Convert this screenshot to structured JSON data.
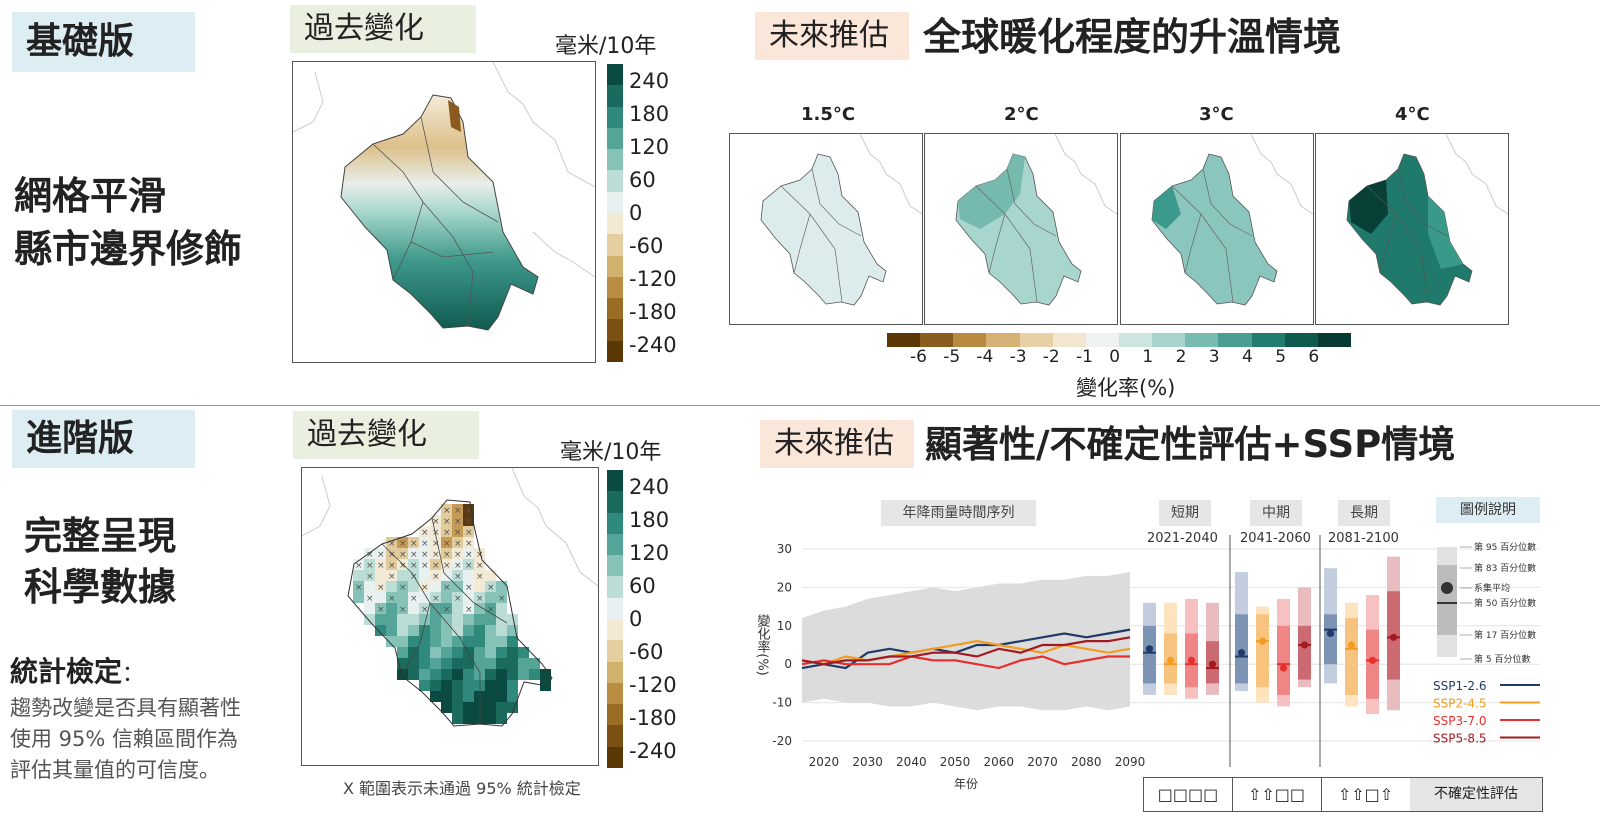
{
  "top": {
    "label": "基礎版",
    "desc_line1": "網格平滑",
    "desc_line2": "縣市邊界修飾",
    "past_label": "過去變化",
    "unit": "毫米/10年",
    "future_tag": "未來推估",
    "future_title": "全球暖化程度的升溫情境",
    "gwl_titles": [
      "1.5°C",
      "2°C",
      "3°C",
      "4°C"
    ],
    "hbar_ticks": [
      "-6",
      "-5",
      "-4",
      "-3",
      "-2",
      "-1",
      "0",
      "1",
      "2",
      "3",
      "4",
      "5",
      "6"
    ],
    "hbar_label": "變化率(%)"
  },
  "bottom": {
    "label": "進階版",
    "desc_line1": "完整呈現",
    "desc_line2": "科學數據",
    "stat_title": "統計檢定",
    "stat_colon": "：",
    "stat_line1": "趨勢改變是否具有顯著性",
    "stat_line2": "使用 95% 信賴區間作為",
    "stat_line3": "評估其量值的可信度。",
    "past_label": "過去變化",
    "unit": "毫米/10年",
    "map_note": "X 範圍表示未通過 95%  統計檢定",
    "future_tag": "未來推估",
    "future_title": "顯著性/不確定性評估+SSP情境",
    "ts_header": "年降雨量時間序列",
    "period_headers": [
      "短期",
      "中期",
      "長期"
    ],
    "period_ranges": [
      "2021-2040",
      "2041-2060",
      "2081-2100"
    ],
    "legend_header": "圖例說明",
    "legend_box_labels": [
      "第 95 百分位數",
      "第 83 百分位數",
      "系集平均",
      "第 50 百分位數",
      "第 17 百分位數",
      "第 5 百分位數"
    ],
    "bottom_cells": [
      "□□□□",
      "⇧⇧□□",
      "⇧⇧□⇧",
      "不確定性評估"
    ]
  },
  "colorbar_ticks": [
    "240",
    "180",
    "120",
    "60",
    "0",
    "-60",
    "-120",
    "-180",
    "-240"
  ],
  "colors": {
    "brown_dark": "#5b3a10",
    "green_dark": "#0c4f45",
    "ssp1": "#1f3a68",
    "ssp2": "#f39c1f",
    "ssp3": "#e53030",
    "ssp5": "#a31a22"
  },
  "chart_data": [
    {
      "type": "line",
      "title": "年降雨量時間序列",
      "xlabel": "年份",
      "ylabel": "變化率(%)",
      "xlim": [
        2015,
        2090
      ],
      "ylim": [
        -20,
        30
      ],
      "x_ticks": [
        2020,
        2030,
        2040,
        2050,
        2060,
        2070,
        2080,
        2090
      ],
      "y_ticks": [
        30,
        20,
        10,
        0,
        -10,
        -20
      ],
      "x": [
        2015,
        2020,
        2025,
        2030,
        2035,
        2040,
        2045,
        2050,
        2055,
        2060,
        2065,
        2070,
        2075,
        2080,
        2085,
        2090
      ],
      "band_upper": [
        12,
        14,
        15,
        17,
        18,
        19,
        20,
        19,
        20,
        21,
        21,
        22,
        22,
        23,
        23,
        24
      ],
      "band_lower": [
        -10,
        -9,
        -10,
        -10,
        -11,
        -11,
        -10,
        -11,
        -12,
        -11,
        -11,
        -12,
        -12,
        -11,
        -12,
        -11
      ],
      "series": [
        {
          "name": "SSP1-2.6",
          "color": "#1f3a68",
          "values": [
            -1,
            0,
            -1,
            3,
            4,
            3,
            4,
            3,
            5,
            5,
            6,
            7,
            8,
            7,
            8,
            9
          ]
        },
        {
          "name": "SSP2-4.5",
          "color": "#f39c1f",
          "values": [
            1,
            0,
            2,
            1,
            2,
            3,
            4,
            5,
            6,
            5,
            4,
            3,
            5,
            4,
            3,
            4
          ]
        },
        {
          "name": "SSP3-7.0",
          "color": "#e53030",
          "values": [
            0,
            1,
            0,
            0,
            0,
            2,
            1,
            1,
            0,
            -1,
            1,
            2,
            0,
            1,
            2,
            2
          ]
        },
        {
          "name": "SSP5-8.5",
          "color": "#a31a22",
          "values": [
            1,
            0,
            1,
            1,
            2,
            2,
            3,
            3,
            2,
            4,
            3,
            5,
            5,
            6,
            6,
            7
          ]
        }
      ]
    },
    {
      "type": "box",
      "categories": [
        "2021-2040",
        "2041-2060",
        "2081-2100"
      ],
      "series": [
        {
          "name": "SSP1-2.6",
          "p5": [
            -8,
            -7,
            -5
          ],
          "p17": [
            -5,
            -5,
            0
          ],
          "mean": [
            4,
            3,
            8
          ],
          "p50": [
            3,
            2,
            9
          ],
          "p83": [
            10,
            13,
            13
          ],
          "p95": [
            16,
            24,
            25
          ]
        },
        {
          "name": "SSP2-4.5",
          "p5": [
            -8,
            -10,
            -11
          ],
          "p17": [
            -5,
            -6,
            -8
          ],
          "mean": [
            1,
            6,
            5
          ],
          "p50": [
            0,
            6,
            4
          ],
          "p83": [
            8,
            13,
            12
          ],
          "p95": [
            16,
            15,
            16
          ]
        },
        {
          "name": "SSP3-7.0",
          "p5": [
            -9,
            -11,
            -13
          ],
          "p17": [
            -6,
            -8,
            -9
          ],
          "mean": [
            1,
            -1,
            1
          ],
          "p50": [
            0,
            0,
            1
          ],
          "p83": [
            8,
            10,
            9
          ],
          "p95": [
            17,
            17,
            18
          ]
        },
        {
          "name": "SSP5-8.5",
          "p5": [
            -8,
            -6,
            -12
          ],
          "p17": [
            -5,
            -4,
            -4
          ],
          "mean": [
            0,
            5,
            7
          ],
          "p50": [
            -1,
            5,
            7
          ],
          "p83": [
            6,
            10,
            19
          ],
          "p95": [
            16,
            20,
            28
          ]
        }
      ]
    }
  ]
}
